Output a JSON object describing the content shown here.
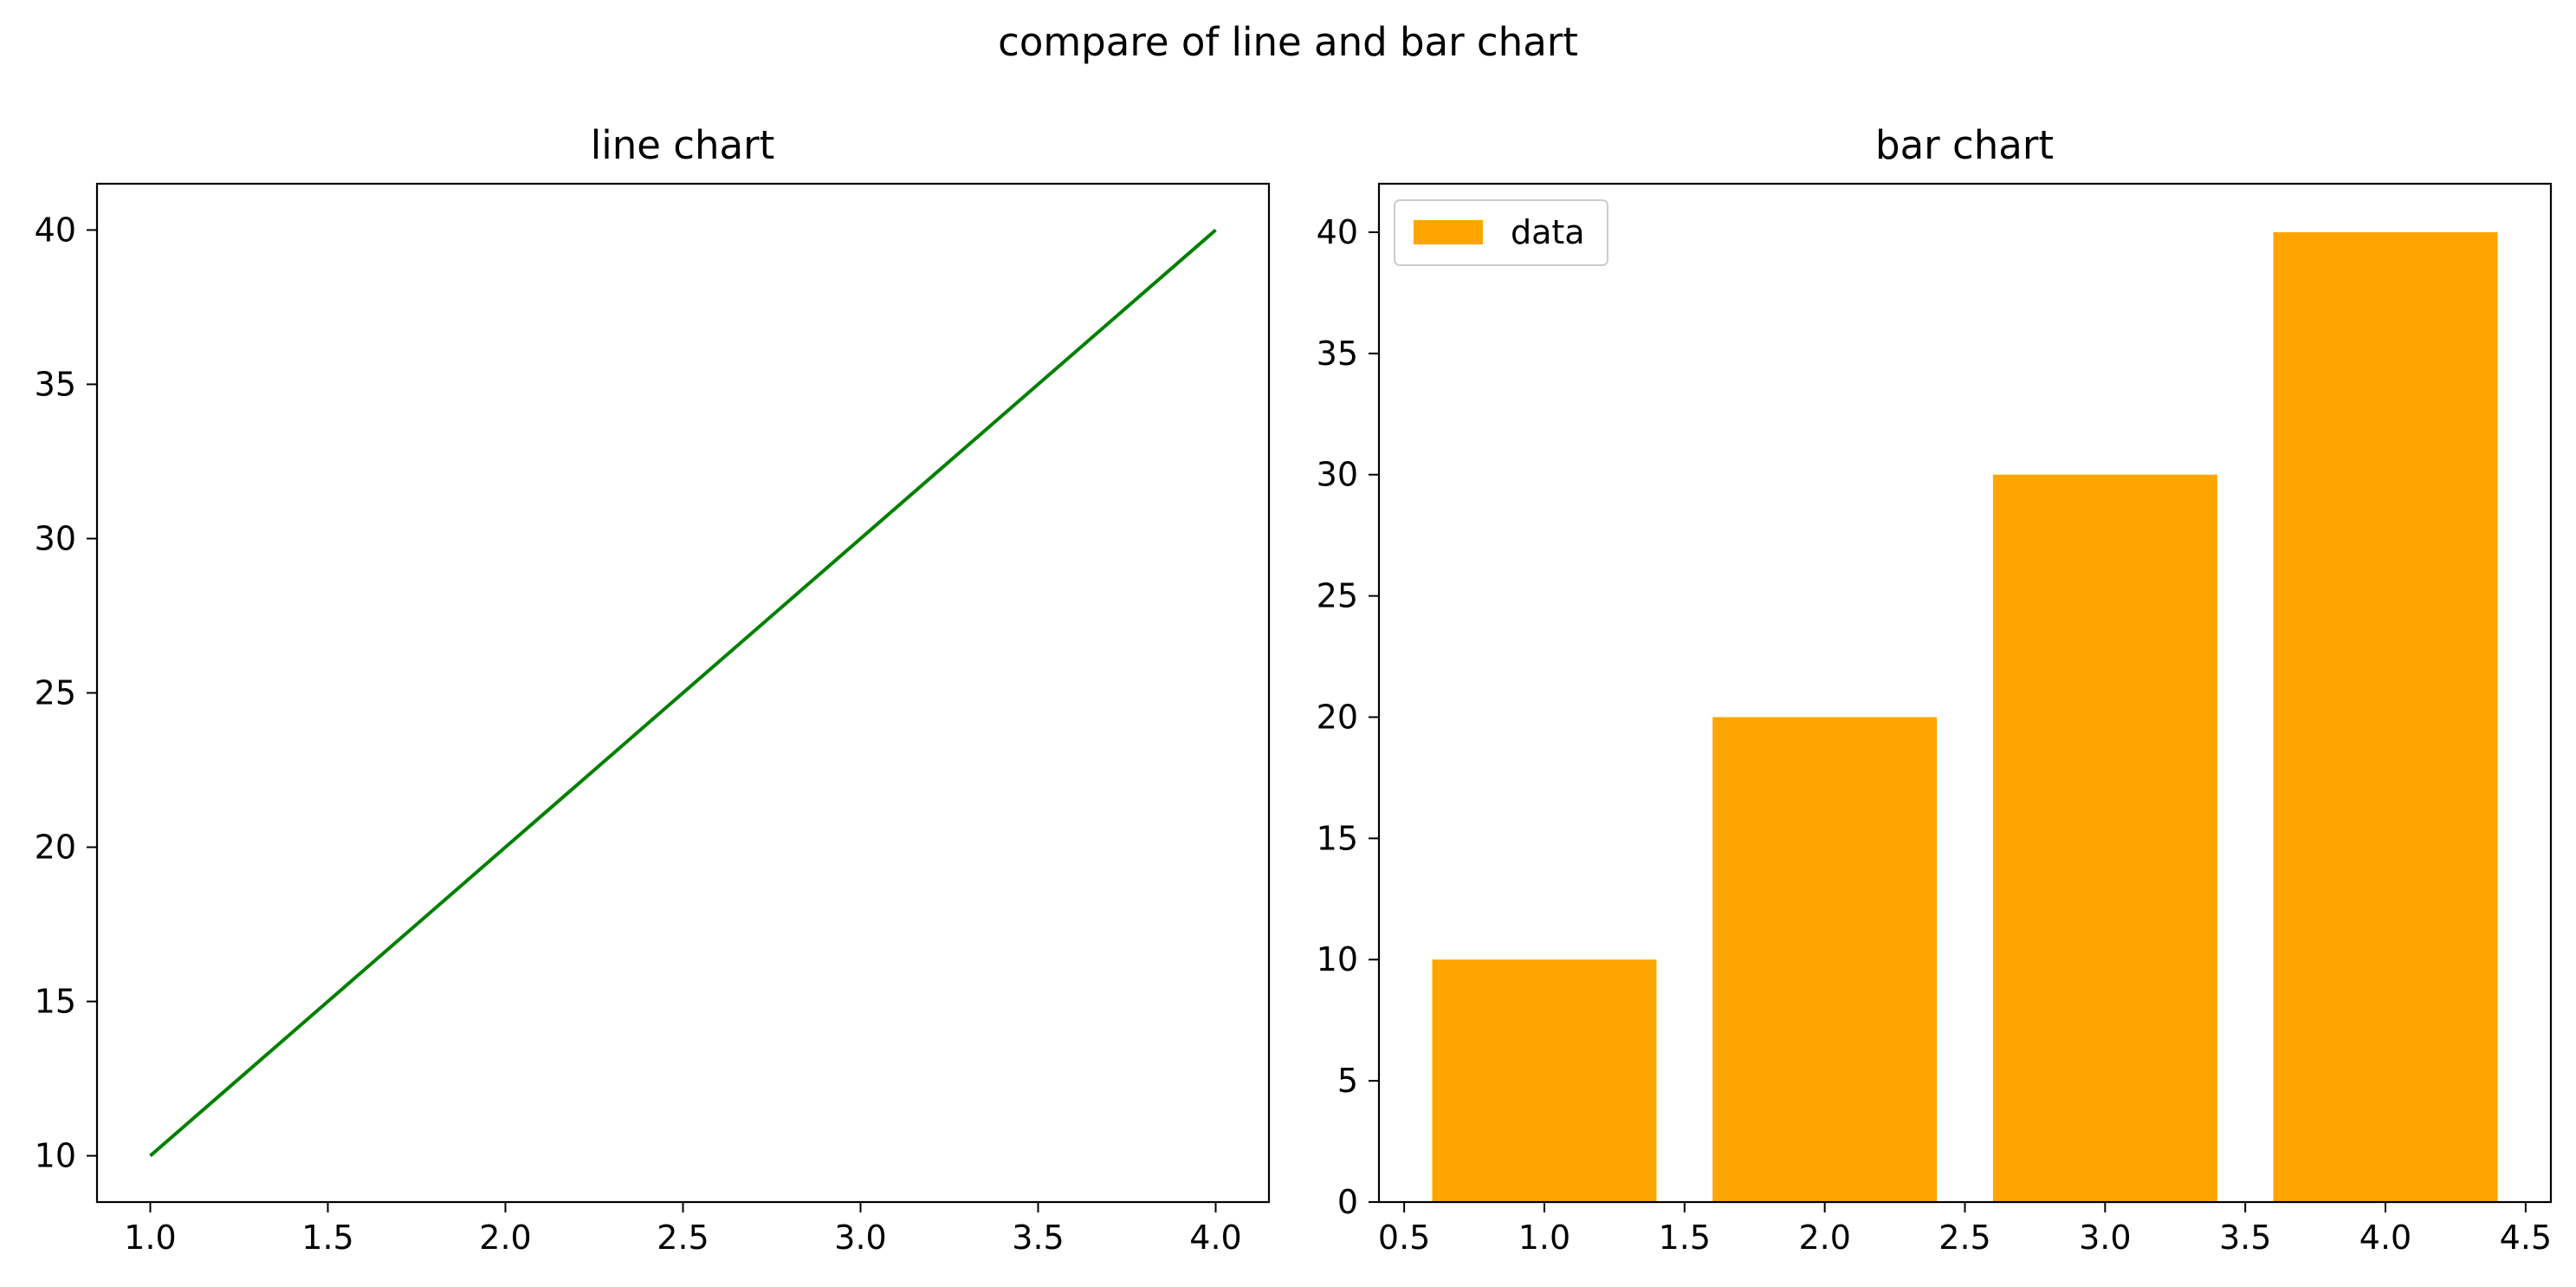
{
  "figure": {
    "suptitle": "compare of line and bar chart"
  },
  "colors": {
    "line": "#008000",
    "bar": "#FFA500",
    "axes": "#000000",
    "legend_border": "#CCCCCC"
  },
  "chart_data": [
    {
      "type": "line",
      "title": "line chart",
      "x": [
        1,
        2,
        3,
        4
      ],
      "y": [
        10,
        20,
        30,
        40
      ],
      "xlim": [
        0.85,
        4.15
      ],
      "ylim": [
        8.5,
        41.5
      ],
      "xticks": [
        "1.0",
        "1.5",
        "2.0",
        "2.5",
        "3.0",
        "3.5",
        "4.0"
      ],
      "yticks": [
        "10",
        "15",
        "20",
        "25",
        "30",
        "35",
        "40"
      ],
      "color": "#008000",
      "grid": false
    },
    {
      "type": "bar",
      "title": "bar chart",
      "x": [
        1,
        2,
        3,
        4
      ],
      "values": [
        10,
        20,
        30,
        40
      ],
      "bar_width": 0.8,
      "xlim": [
        0.41,
        4.59
      ],
      "ylim": [
        0,
        42
      ],
      "xticks": [
        "0.5",
        "1.0",
        "1.5",
        "2.0",
        "2.5",
        "3.0",
        "3.5",
        "4.0",
        "4.5"
      ],
      "yticks": [
        "0",
        "5",
        "10",
        "15",
        "20",
        "25",
        "30",
        "35",
        "40"
      ],
      "series": [
        {
          "name": "data",
          "values": [
            10,
            20,
            30,
            40
          ]
        }
      ],
      "legend": {
        "position": "upper left",
        "entries": [
          "data"
        ]
      },
      "color": "#FFA500",
      "grid": false
    }
  ]
}
